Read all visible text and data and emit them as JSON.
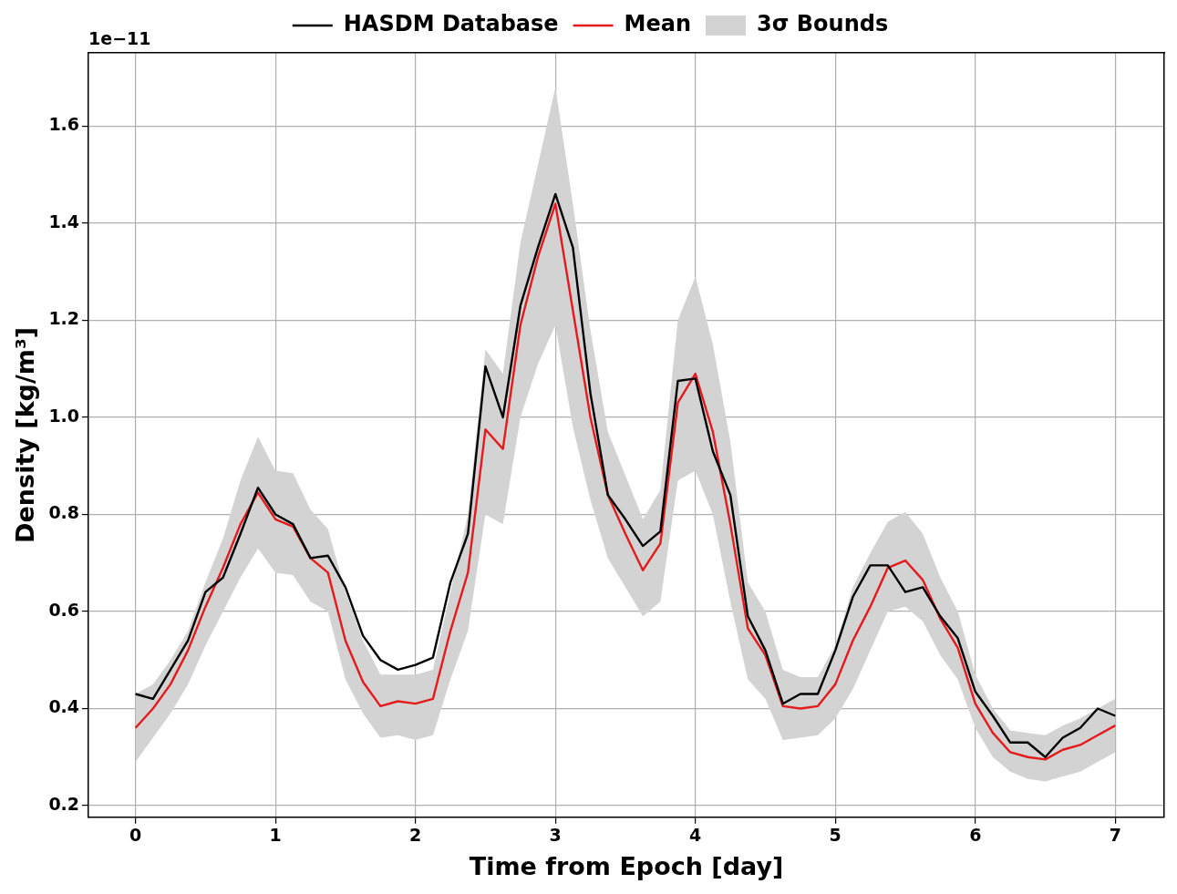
{
  "chart_data": {
    "type": "line",
    "xlabel": "Time from Epoch [day]",
    "ylabel": "Density [kg/m³]",
    "annotations": [
      "1e−11"
    ],
    "x": [
      0,
      0.125,
      0.25,
      0.375,
      0.5,
      0.625,
      0.75,
      0.875,
      1,
      1.125,
      1.25,
      1.375,
      1.5,
      1.625,
      1.75,
      1.875,
      2,
      2.125,
      2.25,
      2.375,
      2.5,
      2.625,
      2.75,
      2.875,
      3,
      3.125,
      3.25,
      3.375,
      3.5,
      3.625,
      3.75,
      3.875,
      4,
      4.125,
      4.25,
      4.375,
      4.5,
      4.625,
      4.75,
      4.875,
      5,
      5.125,
      5.25,
      5.375,
      5.5,
      5.625,
      5.75,
      5.875,
      6,
      6.125,
      6.25,
      6.375,
      6.5,
      6.625,
      6.75,
      6.875,
      7
    ],
    "series": [
      {
        "name": "HASDM Database",
        "color": "#000000",
        "values": [
          0.43,
          0.42,
          0.48,
          0.54,
          0.64,
          0.67,
          0.76,
          0.855,
          0.8,
          0.78,
          0.71,
          0.715,
          0.65,
          0.55,
          0.5,
          0.48,
          0.49,
          0.505,
          0.66,
          0.76,
          1.105,
          1.0,
          1.23,
          1.35,
          1.46,
          1.35,
          1.05,
          0.84,
          0.79,
          0.735,
          0.765,
          1.075,
          1.08,
          0.93,
          0.84,
          0.59,
          0.52,
          0.41,
          0.43,
          0.43,
          0.52,
          0.63,
          0.695,
          0.695,
          0.64,
          0.65,
          0.59,
          0.545,
          0.435,
          0.385,
          0.33,
          0.33,
          0.3,
          0.34,
          0.36,
          0.4,
          0.385
        ]
      },
      {
        "name": "Mean",
        "color": "#e41a1c",
        "values": [
          0.36,
          0.4,
          0.45,
          0.52,
          0.61,
          0.69,
          0.78,
          0.845,
          0.79,
          0.775,
          0.71,
          0.68,
          0.54,
          0.455,
          0.405,
          0.415,
          0.41,
          0.42,
          0.56,
          0.68,
          0.975,
          0.935,
          1.19,
          1.33,
          1.44,
          1.22,
          1.0,
          0.84,
          0.76,
          0.685,
          0.74,
          1.03,
          1.09,
          0.97,
          0.78,
          0.565,
          0.51,
          0.405,
          0.4,
          0.405,
          0.45,
          0.54,
          0.61,
          0.69,
          0.705,
          0.665,
          0.585,
          0.525,
          0.41,
          0.35,
          0.31,
          0.3,
          0.295,
          0.315,
          0.325,
          0.345,
          0.365
        ]
      },
      {
        "name": "3σ Bounds",
        "type": "area",
        "color": "#d3d3d3",
        "values": [
          null,
          null,
          null,
          null,
          null,
          null,
          null,
          null,
          null,
          null,
          null,
          null,
          null,
          null,
          null,
          null,
          null,
          null,
          null,
          null,
          null,
          null,
          null,
          null,
          null,
          null,
          null,
          null,
          null,
          null,
          null,
          null,
          null,
          null,
          null,
          null,
          null,
          null,
          null,
          null,
          null,
          null,
          null,
          null,
          null,
          null,
          null,
          null,
          null,
          null,
          null,
          null,
          null,
          null,
          null,
          null,
          null
        ],
        "lower": [
          0.29,
          0.34,
          0.39,
          0.45,
          0.53,
          0.6,
          0.67,
          0.73,
          0.68,
          0.675,
          0.62,
          0.6,
          0.46,
          0.39,
          0.34,
          0.345,
          0.335,
          0.345,
          0.46,
          0.56,
          0.8,
          0.78,
          1.0,
          1.11,
          1.19,
          0.98,
          0.83,
          0.71,
          0.65,
          0.59,
          0.62,
          0.87,
          0.89,
          0.8,
          0.62,
          0.46,
          0.42,
          0.335,
          0.34,
          0.345,
          0.38,
          0.44,
          0.52,
          0.6,
          0.61,
          0.58,
          0.51,
          0.46,
          0.36,
          0.3,
          0.27,
          0.255,
          0.25,
          0.26,
          0.27,
          0.29,
          0.31
        ],
        "upper": [
          0.43,
          0.45,
          0.5,
          0.56,
          0.66,
          0.75,
          0.87,
          0.96,
          0.89,
          0.885,
          0.81,
          0.77,
          0.64,
          0.54,
          0.47,
          0.47,
          0.47,
          0.48,
          0.64,
          0.8,
          1.14,
          1.09,
          1.36,
          1.52,
          1.68,
          1.44,
          1.18,
          0.97,
          0.88,
          0.79,
          0.85,
          1.2,
          1.29,
          1.15,
          0.95,
          0.66,
          0.6,
          0.48,
          0.465,
          0.465,
          0.53,
          0.65,
          0.72,
          0.785,
          0.805,
          0.76,
          0.67,
          0.6,
          0.47,
          0.4,
          0.355,
          0.35,
          0.345,
          0.365,
          0.38,
          0.4,
          0.42
        ]
      }
    ],
    "xlim": [
      -0.336,
      7.35
    ],
    "xticks": [
      0,
      1,
      2,
      3,
      4,
      5,
      6,
      7
    ],
    "ylim": [
      0.176,
      1.751
    ],
    "yticks": [
      0.2,
      0.4,
      0.6,
      0.8,
      {
        "value": 1.0,
        "label": "1.0"
      },
      1.2,
      1.4,
      1.6
    ],
    "grid": true,
    "legend": "top",
    "marker": "none",
    "line_style": "solid"
  }
}
